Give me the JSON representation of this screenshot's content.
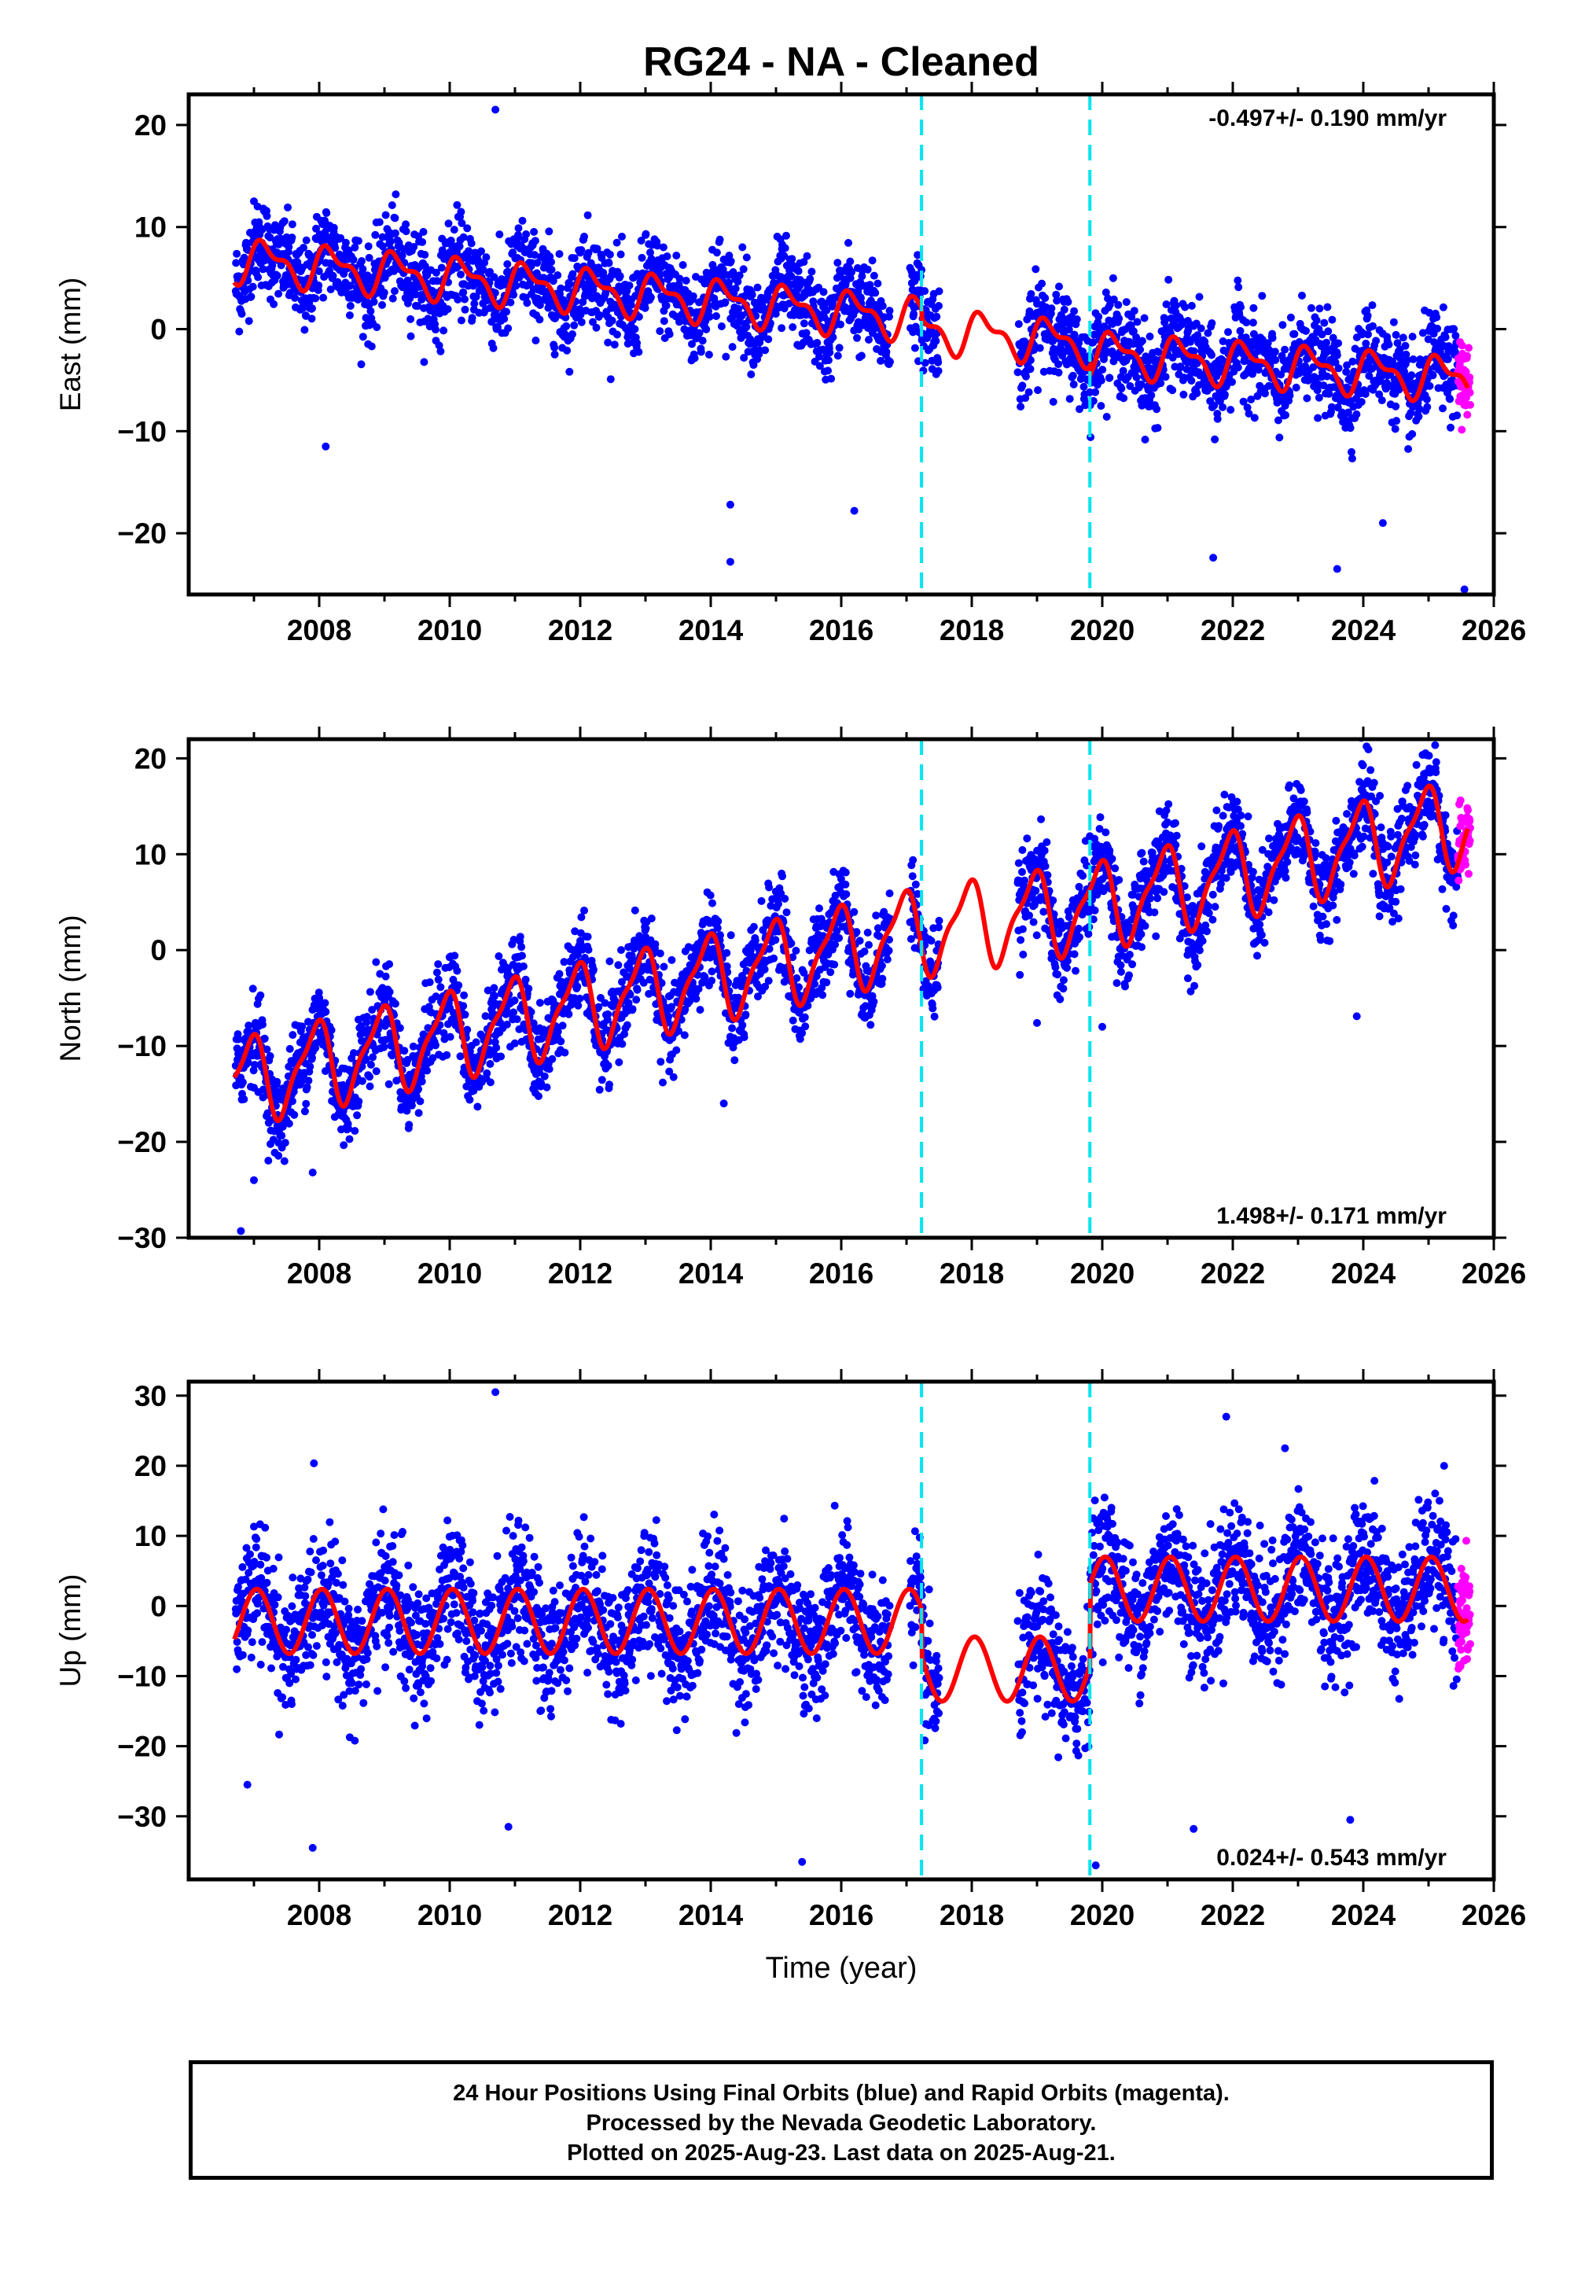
{
  "title": "RG24  - NA - Cleaned",
  "footer": {
    "line1": "24 Hour Positions Using Final Orbits (blue) and Rapid Orbits (magenta).",
    "line2": "Processed by the Nevada Geodetic Laboratory.",
    "line3": "Plotted on 2025-Aug-23. Last data on 2025-Aug-21."
  },
  "colors": {
    "final_orbits": "#0000ff",
    "rapid_orbits": "#ff00ff",
    "model": "#ff0000",
    "breaks": "#00e5ee",
    "frame": "#000000"
  },
  "chart_data": [
    {
      "type": "scatter",
      "name": "east",
      "ylabel": "East (mm)",
      "xlabel": "",
      "xlim": [
        2006.0,
        2026.0
      ],
      "ylim": [
        -26,
        23
      ],
      "xticks": [
        2008,
        2010,
        2012,
        2014,
        2016,
        2018,
        2020,
        2022,
        2024,
        2026
      ],
      "yticks": [
        20,
        10,
        0,
        -10,
        -20
      ],
      "rate_label": "-0.497+/- 0.190 mm/yr",
      "rate_position": "top-right",
      "breaks": [
        2017.23,
        2019.81
      ],
      "data_gap": [
        2017.5,
        2018.7
      ],
      "rapid_start": 2025.45,
      "model": {
        "segments": [
          {
            "start": 2006.7,
            "end": 2017.23,
            "intercept": 6.8,
            "ref_year": 2006.7,
            "rate": -0.55
          },
          {
            "start": 2017.23,
            "end": 2019.81,
            "intercept": 0.0,
            "ref_year": 2017.23,
            "rate": -0.55
          },
          {
            "start": 2019.81,
            "end": 2025.6,
            "intercept": -2.3,
            "ref_year": 2019.81,
            "rate": -0.45
          }
        ],
        "annual_amp": 1.8,
        "annual_phase": 0.35,
        "semiannual_amp": 0.9,
        "semiannual_phase": 1.1
      },
      "scatter_sigma": 2.2,
      "outliers": [
        [
          2010.7,
          21.5
        ],
        [
          2014.3,
          -22.8
        ],
        [
          2014.3,
          -17.2
        ],
        [
          2025.55,
          -25.5
        ],
        [
          2021.7,
          -22.4
        ],
        [
          2023.6,
          -23.5
        ],
        [
          2008.1,
          -11.5
        ],
        [
          2016.2,
          -17.8
        ],
        [
          2024.3,
          -19.0
        ]
      ]
    },
    {
      "type": "scatter",
      "name": "north",
      "ylabel": "North (mm)",
      "xlabel": "",
      "xlim": [
        2006.0,
        2026.0
      ],
      "ylim": [
        -30,
        22
      ],
      "xticks": [
        2008,
        2010,
        2012,
        2014,
        2016,
        2018,
        2020,
        2022,
        2024,
        2026
      ],
      "yticks": [
        20,
        10,
        0,
        -10,
        -20,
        -30
      ],
      "rate_label": "1.498+/- 0.171 mm/yr",
      "rate_position": "bottom-right",
      "breaks": [
        2017.23,
        2019.81
      ],
      "data_gap": [
        2017.5,
        2018.7
      ],
      "rapid_start": 2025.45,
      "model": {
        "segments": [
          {
            "start": 2006.7,
            "end": 2017.23,
            "intercept": -13.8,
            "ref_year": 2006.7,
            "rate": 1.5
          },
          {
            "start": 2017.23,
            "end": 2019.81,
            "intercept": 2.0,
            "ref_year": 2017.23,
            "rate": 1.0
          },
          {
            "start": 2019.81,
            "end": 2025.6,
            "intercept": 4.5,
            "ref_year": 2019.81,
            "rate": 1.55
          }
        ],
        "annual_amp": 4.2,
        "annual_phase": 2.0,
        "semiannual_amp": 1.3,
        "semiannual_phase": 0.6
      },
      "scatter_sigma": 2.3,
      "outliers": [
        [
          2006.8,
          -29.3
        ],
        [
          2007.0,
          -24.0
        ],
        [
          2007.9,
          -23.2
        ],
        [
          2014.2,
          -16.0
        ],
        [
          2019.0,
          -7.6
        ],
        [
          2023.9,
          -6.9
        ],
        [
          2020.0,
          -8.0
        ]
      ]
    },
    {
      "type": "scatter",
      "name": "up",
      "ylabel": "Up (mm)",
      "xlabel": "Time (year)",
      "xlim": [
        2006.0,
        2026.0
      ],
      "ylim": [
        -39,
        32
      ],
      "xticks": [
        2008,
        2010,
        2012,
        2014,
        2016,
        2018,
        2020,
        2022,
        2024,
        2026
      ],
      "yticks": [
        30,
        20,
        10,
        0,
        -10,
        -20,
        -30
      ],
      "rate_label": "0.024+/- 0.543 mm/yr",
      "rate_position": "bottom-right",
      "breaks": [
        2017.23,
        2019.81
      ],
      "data_gap": [
        2017.5,
        2018.7
      ],
      "rapid_start": 2025.45,
      "model": {
        "segments": [
          {
            "start": 2006.7,
            "end": 2017.23,
            "intercept": -2.2,
            "ref_year": 2006.7,
            "rate": 0.0
          },
          {
            "start": 2017.23,
            "end": 2019.81,
            "intercept": -9.0,
            "ref_year": 2017.23,
            "rate": 0.0
          },
          {
            "start": 2019.81,
            "end": 2025.6,
            "intercept": 2.4,
            "ref_year": 2019.81,
            "rate": 0.0
          }
        ],
        "annual_amp": 4.6,
        "annual_phase": 1.3,
        "semiannual_amp": 0.0,
        "semiannual_phase": 0.0
      },
      "scatter_sigma": 4.5,
      "outliers": [
        [
          2010.7,
          30.5
        ],
        [
          2007.9,
          -34.5
        ],
        [
          2006.9,
          -25.5
        ],
        [
          2015.4,
          -36.5
        ],
        [
          2019.9,
          -37.0
        ],
        [
          2021.4,
          -31.8
        ],
        [
          2023.8,
          -30.5
        ],
        [
          2010.9,
          -31.5
        ],
        [
          2022.8,
          22.5
        ],
        [
          2021.9,
          27.0
        ]
      ]
    }
  ]
}
